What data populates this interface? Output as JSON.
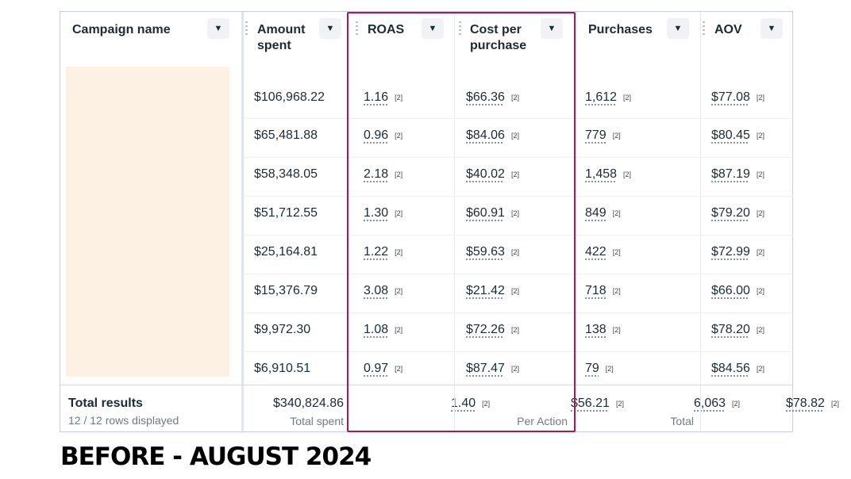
{
  "columns": {
    "campaign": {
      "title": "Campaign name"
    },
    "amount": {
      "title": "Amount\nspent"
    },
    "roas": {
      "title": "ROAS"
    },
    "cpp": {
      "title": "Cost per\npurchase"
    },
    "purchases": {
      "title": "Purchases"
    },
    "aov": {
      "title": "AOV"
    }
  },
  "footnote": "[2]",
  "rows": [
    {
      "amount": "$106,968.22",
      "roas": "1.16",
      "cpp": "$66.36",
      "purchases": "1,612",
      "aov": "$77.08"
    },
    {
      "amount": "$65,481.88",
      "roas": "0.96",
      "cpp": "$84.06",
      "purchases": "779",
      "aov": "$80.45"
    },
    {
      "amount": "$58,348.05",
      "roas": "2.18",
      "cpp": "$40.02",
      "purchases": "1,458",
      "aov": "$87.19"
    },
    {
      "amount": "$51,712.55",
      "roas": "1.30",
      "cpp": "$60.91",
      "purchases": "849",
      "aov": "$79.20"
    },
    {
      "amount": "$25,164.81",
      "roas": "1.22",
      "cpp": "$59.63",
      "purchases": "422",
      "aov": "$72.99"
    },
    {
      "amount": "$15,376.79",
      "roas": "3.08",
      "cpp": "$21.42",
      "purchases": "718",
      "aov": "$66.00"
    },
    {
      "amount": "$9,972.30",
      "roas": "1.08",
      "cpp": "$72.26",
      "purchases": "138",
      "aov": "$78.20"
    },
    {
      "amount": "$6,910.51",
      "roas": "0.97",
      "cpp": "$87.47",
      "purchases": "79",
      "aov": "$84.56"
    }
  ],
  "totals": {
    "label": "Total results",
    "rows_displayed": "12 / 12 rows displayed",
    "amount": "$340,824.86",
    "amount_sub": "Total spent",
    "roas": "1.40",
    "cpp": "$56.21",
    "cpp_sub": "Per Action",
    "purchases": "6,063",
    "purchases_sub": "Total",
    "aov": "$78.82"
  },
  "caption": "BEFORE - AUGUST 2024",
  "colors": {
    "highlight": "#b8124a",
    "placeholder": "#fdf1e3"
  },
  "icons": {
    "column_menu": "caret-down-icon",
    "drag_handle": "grip-icon"
  }
}
